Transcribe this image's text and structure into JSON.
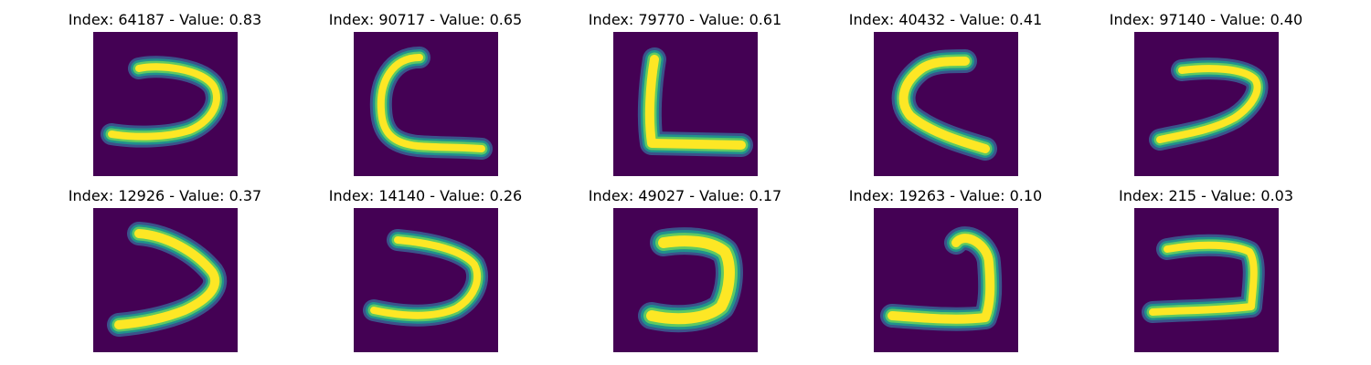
{
  "colors": {
    "background": "#440154",
    "glyph_core": "#fde725",
    "glyph_mid": "#5ec962",
    "glyph_edge": "#21918c",
    "glyph_halo": "#3b528b"
  },
  "panels": [
    {
      "title": "Index: 64187 - Value: 0.83",
      "index": 64187,
      "value": 0.83
    },
    {
      "title": "Index: 90717 - Value: 0.65",
      "index": 90717,
      "value": 0.65
    },
    {
      "title": "Index: 79770 - Value: 0.61",
      "index": 79770,
      "value": 0.61
    },
    {
      "title": "Index: 40432 - Value: 0.41",
      "index": 40432,
      "value": 0.41
    },
    {
      "title": "Index: 97140 - Value: 0.40",
      "index": 97140,
      "value": 0.4
    },
    {
      "title": "Index: 12926 - Value: 0.37",
      "index": 12926,
      "value": 0.37
    },
    {
      "title": "Index: 14140 - Value: 0.26",
      "index": 14140,
      "value": 0.26
    },
    {
      "title": "Index: 49027 - Value: 0.17",
      "index": 49027,
      "value": 0.17
    },
    {
      "title": "Index: 19263 - Value: 0.10",
      "index": 19263,
      "value": 0.1
    },
    {
      "title": "Index: 215 - Value: 0.03",
      "index": 215,
      "value": 0.03
    }
  ]
}
